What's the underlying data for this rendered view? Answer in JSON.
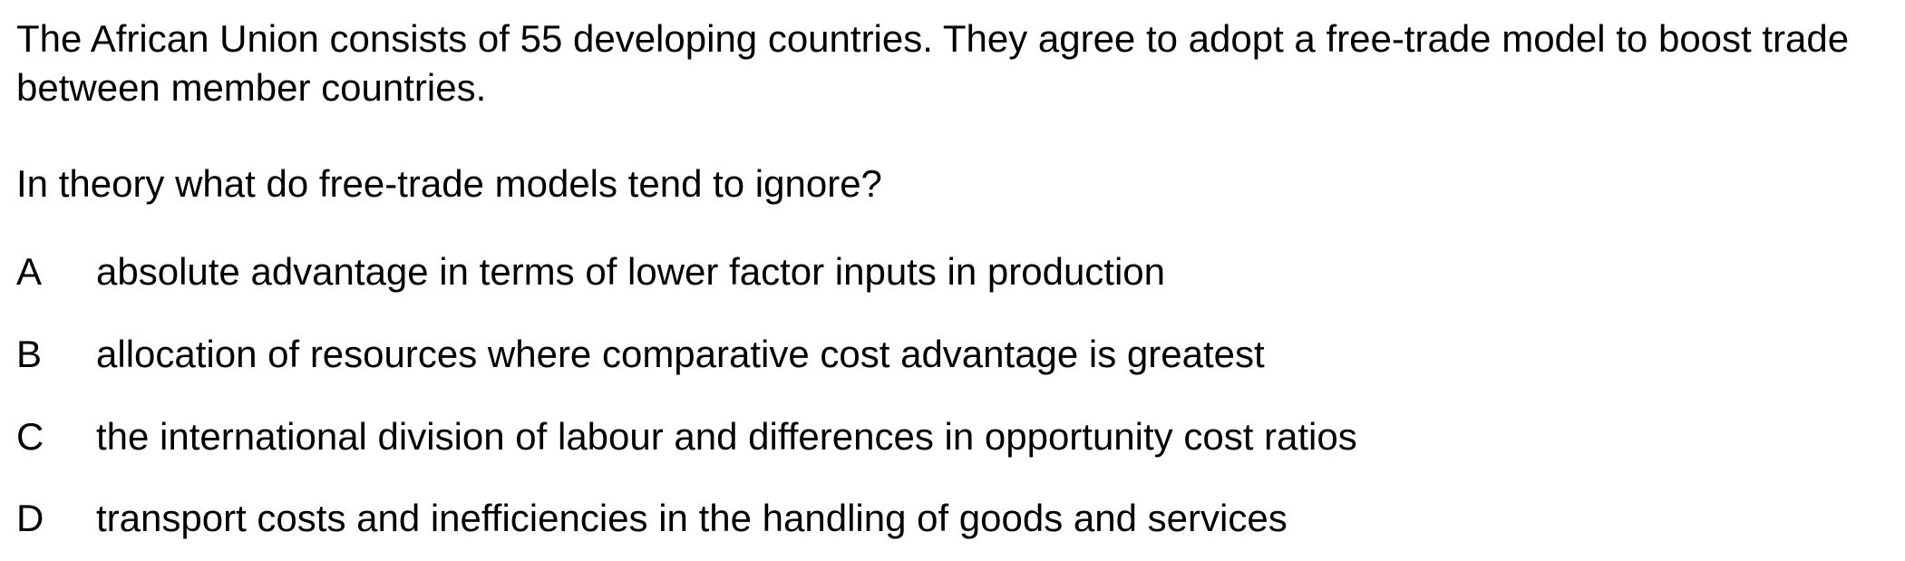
{
  "stem": "The African Union consists of 55 developing countries. They agree to adopt a free-trade model to boost trade between member countries.",
  "question": "In theory what do free-trade models tend to ignore?",
  "options": [
    {
      "letter": "A",
      "text": "absolute advantage in terms of lower factor inputs in production"
    },
    {
      "letter": "B",
      "text": "allocation of resources where comparative cost advantage is greatest"
    },
    {
      "letter": "C",
      "text": "the international division of labour and differences in opportunity cost ratios"
    },
    {
      "letter": "D",
      "text": "transport costs and inefficiencies in the handling of goods and services"
    }
  ]
}
